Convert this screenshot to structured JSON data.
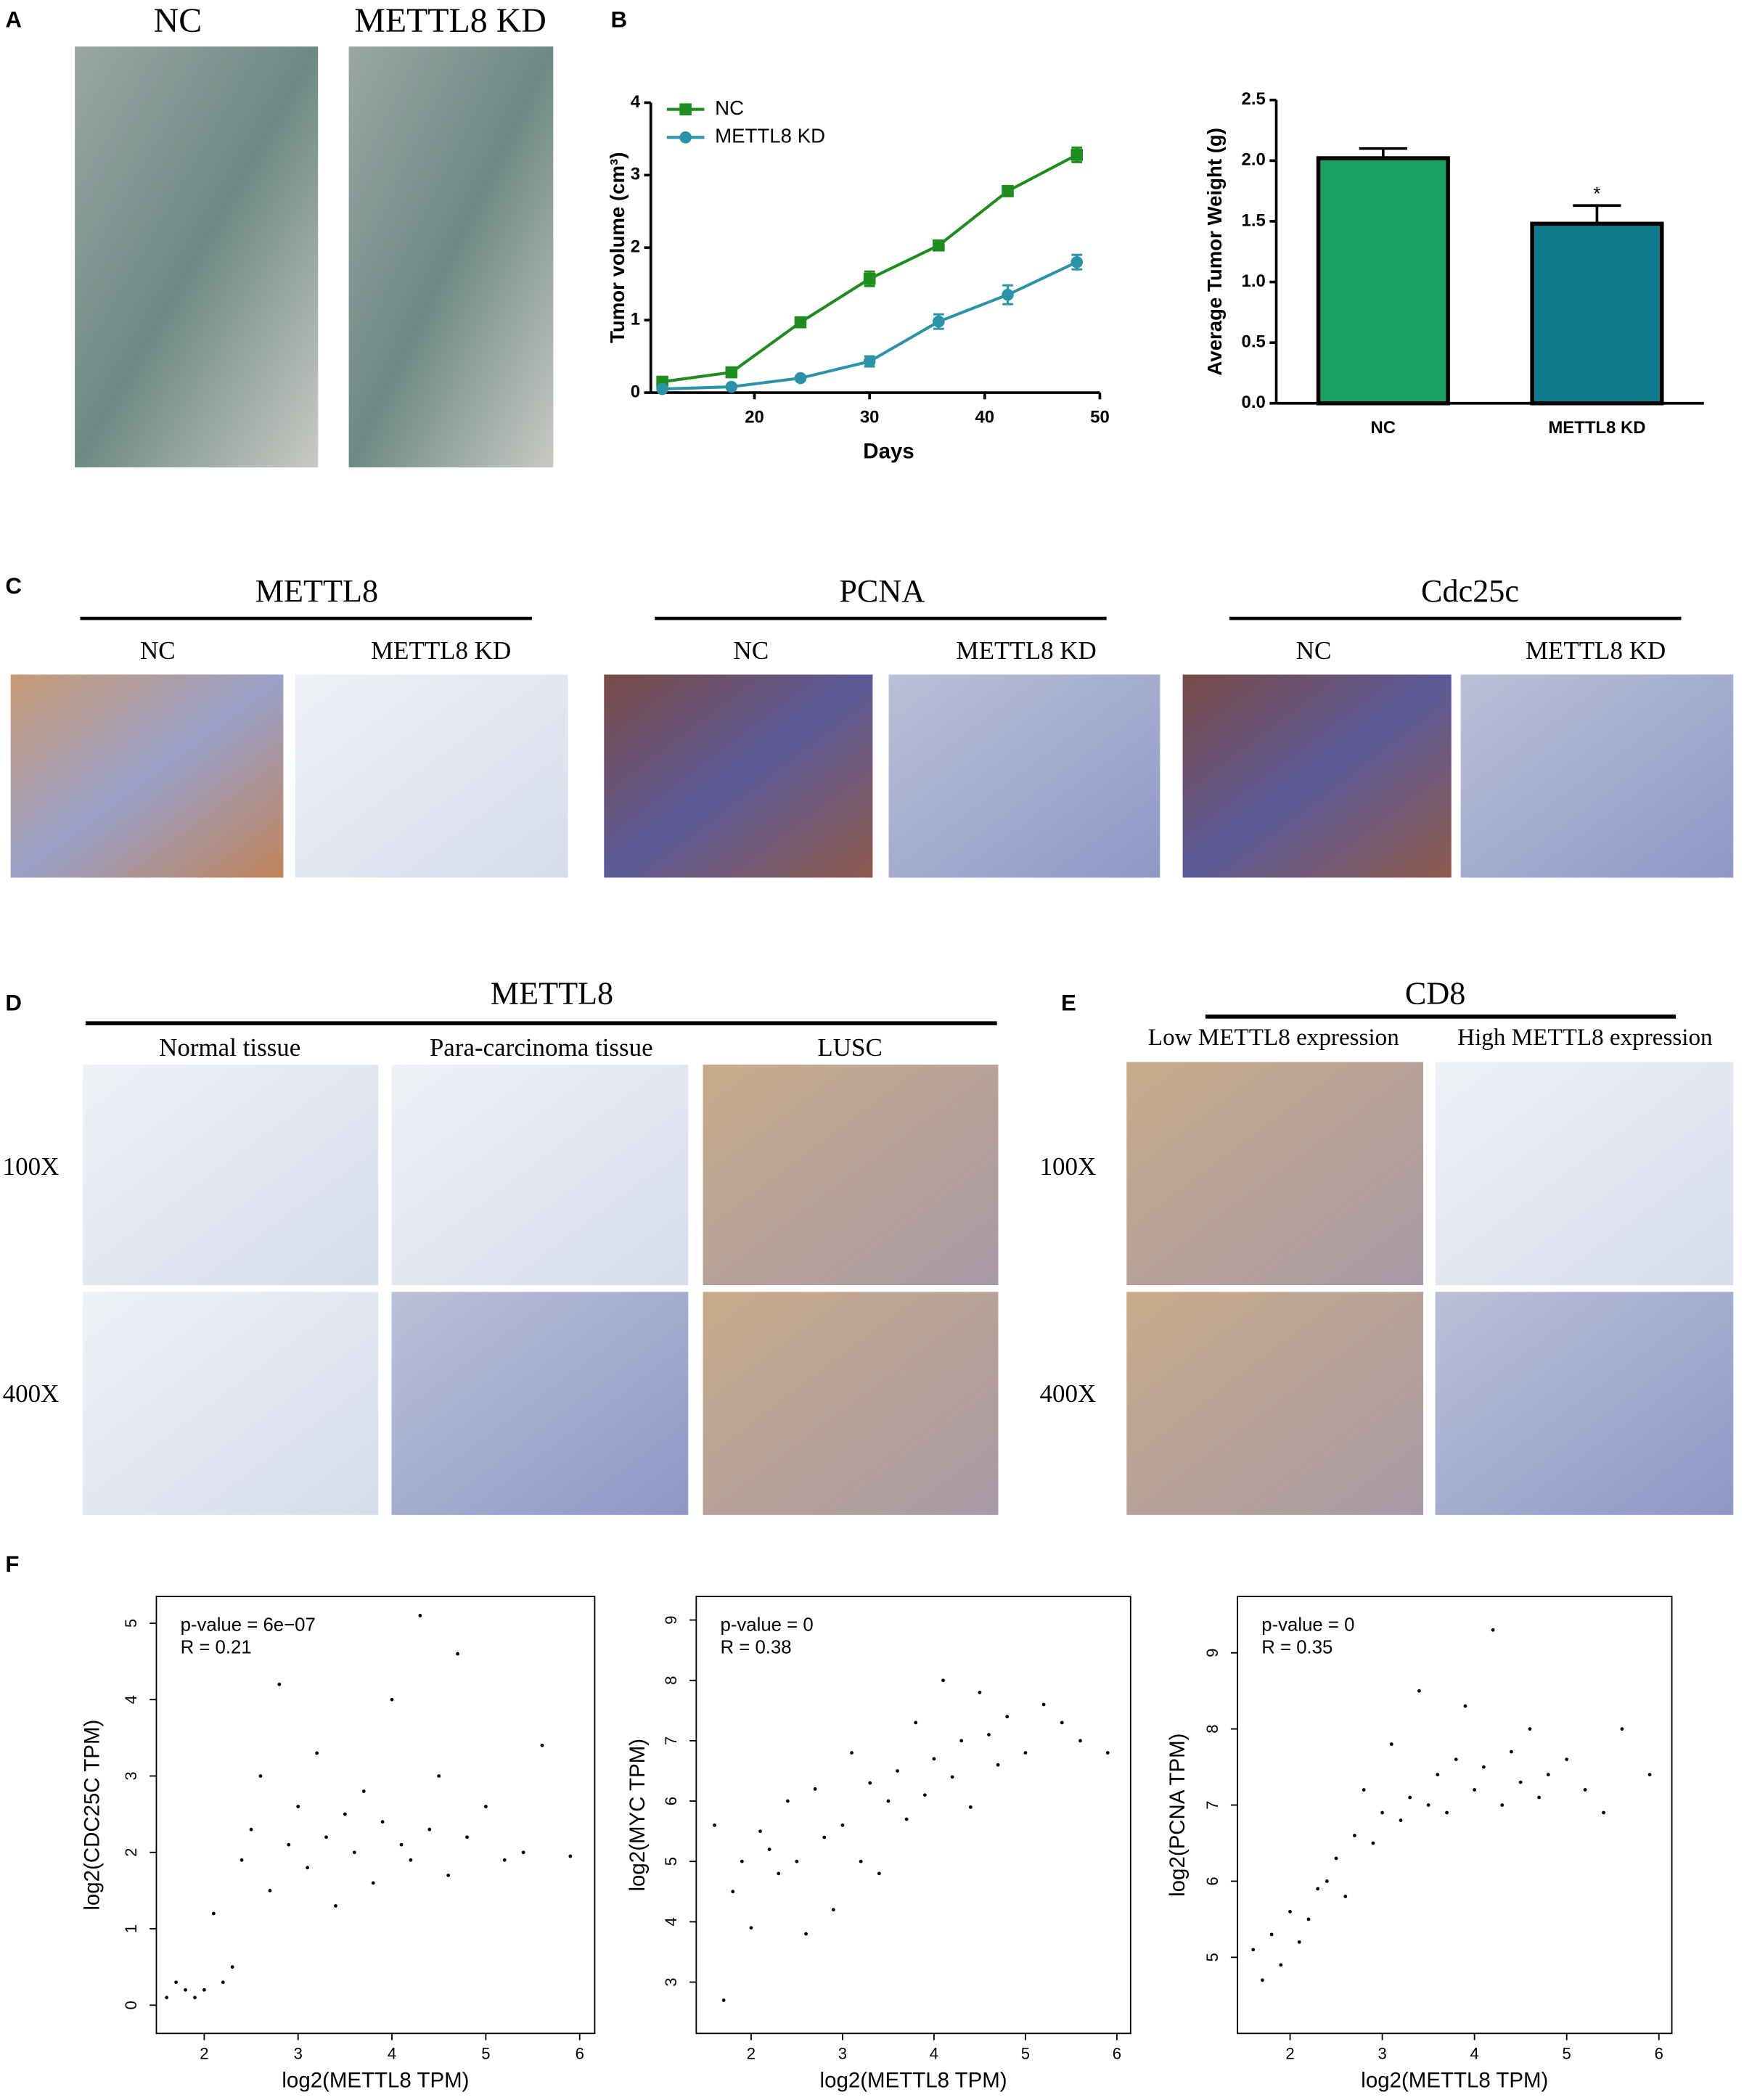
{
  "panel_labels": [
    "A",
    "B",
    "C",
    "D",
    "E",
    "F"
  ],
  "panel_a": {
    "labels": [
      "NC",
      "METTL8 KD"
    ]
  },
  "panel_c": {
    "groups": [
      {
        "title": "METTL8",
        "labels": [
          "NC",
          "METTL8 KD"
        ]
      },
      {
        "title": "PCNA",
        "labels": [
          "NC",
          "METTL8 KD"
        ]
      },
      {
        "title": "Cdc25c",
        "labels": [
          "NC",
          "METTL8 KD"
        ]
      }
    ]
  },
  "panel_d": {
    "title": "METTL8",
    "columns": [
      "Normal tissue",
      "Para-carcinoma tissue",
      "LUSC"
    ],
    "rows": [
      "100X",
      "400X"
    ]
  },
  "panel_e": {
    "title": "CD8",
    "columns": [
      "Low METTL8 expression",
      "High METTL8 expression"
    ],
    "rows": [
      "100X",
      "400X"
    ]
  },
  "chart_data": [
    {
      "type": "line",
      "xlabel": "Days",
      "ylabel": "Tumor volume (cm³)",
      "x": [
        12,
        18,
        24,
        30,
        36,
        42,
        48
      ],
      "series": [
        {
          "name": "NC",
          "color": "#1e8c1e",
          "marker": "square",
          "values": [
            0.15,
            0.28,
            0.97,
            1.57,
            2.03,
            2.78,
            3.28
          ],
          "errors": [
            0.05,
            0.05,
            0.05,
            0.1,
            0.06,
            0.07,
            0.1
          ]
        },
        {
          "name": "METTL8 KD",
          "color": "#2a93a8",
          "marker": "circle",
          "values": [
            0.05,
            0.08,
            0.2,
            0.43,
            0.98,
            1.35,
            1.8
          ],
          "errors": [
            0.02,
            0.02,
            0.03,
            0.07,
            0.1,
            0.13,
            0.1
          ]
        }
      ],
      "xlim": [
        11,
        50
      ],
      "xticks": [
        20,
        30,
        40,
        50
      ],
      "ylim": [
        0,
        4
      ],
      "yticks": [
        0,
        1,
        2,
        3,
        4
      ],
      "legend": "upper-left"
    },
    {
      "type": "bar",
      "ylabel": "Average Tumor Weight (g)",
      "categories": [
        "NC",
        "METTL8 KD"
      ],
      "values": [
        2.02,
        1.48
      ],
      "errors": [
        0.08,
        0.15
      ],
      "colors": [
        "#1aa060",
        "#0e7b8c"
      ],
      "annotations": [
        "",
        "*"
      ],
      "ylim": [
        0,
        2.5
      ],
      "yticks": [
        {
          "value": 0,
          "label": "0.0"
        },
        0.5,
        {
          "value": 1,
          "label": "1.0"
        },
        1.5,
        {
          "value": 2,
          "label": "2.0"
        },
        2.5
      ]
    },
    {
      "type": "scatter",
      "xlabel": "log2(METTL8 TPM)",
      "ylabel": "log2(CDC25C TPM)",
      "annotations": [
        "p-value = 6e−07",
        "R = 0.21"
      ],
      "color": "#000000",
      "x": [
        1.6,
        1.7,
        1.8,
        1.9,
        2.0,
        2.1,
        2.2,
        2.3,
        2.4,
        2.5,
        2.6,
        2.7,
        2.8,
        2.9,
        3.0,
        3.1,
        3.2,
        3.3,
        3.4,
        3.5,
        3.6,
        3.7,
        3.8,
        3.9,
        4.0,
        4.1,
        4.2,
        4.3,
        4.4,
        4.5,
        4.6,
        4.7,
        4.8,
        5.0,
        5.2,
        5.4,
        5.6,
        5.9
      ],
      "values": [
        0.1,
        0.3,
        0.2,
        0.1,
        0.2,
        1.2,
        0.3,
        0.5,
        1.9,
        2.3,
        3.0,
        1.5,
        4.2,
        2.1,
        2.6,
        1.8,
        3.3,
        2.2,
        1.3,
        2.5,
        2.0,
        2.8,
        1.6,
        2.4,
        4.0,
        2.1,
        1.9,
        5.1,
        2.3,
        3.0,
        1.7,
        4.6,
        2.2,
        2.6,
        1.9,
        2.0,
        3.4,
        1.95
      ],
      "xlim": [
        1.49,
        6.16
      ],
      "xticks": [
        2,
        3,
        4,
        5,
        6
      ],
      "ylim": [
        -0.37,
        5.35
      ],
      "yticks": [
        0,
        1,
        2,
        3,
        4,
        5
      ]
    },
    {
      "type": "scatter",
      "xlabel": "log2(METTL8 TPM)",
      "ylabel": "log2(MYC TPM)",
      "annotations": [
        "p-value = 0",
        "R = 0.38"
      ],
      "color": "#000000",
      "x": [
        1.6,
        1.7,
        1.8,
        1.9,
        2.0,
        2.1,
        2.2,
        2.3,
        2.4,
        2.5,
        2.6,
        2.7,
        2.8,
        2.9,
        3.0,
        3.1,
        3.2,
        3.3,
        3.4,
        3.5,
        3.6,
        3.7,
        3.8,
        3.9,
        4.0,
        4.1,
        4.2,
        4.3,
        4.4,
        4.5,
        4.6,
        4.7,
        4.8,
        5.0,
        5.2,
        5.4,
        5.6,
        5.9
      ],
      "values": [
        5.6,
        2.7,
        4.5,
        5.0,
        3.9,
        5.5,
        5.2,
        4.8,
        6.0,
        5.0,
        3.8,
        6.2,
        5.4,
        4.2,
        5.6,
        6.8,
        5.0,
        6.3,
        4.8,
        6.0,
        6.5,
        5.7,
        7.3,
        6.1,
        6.7,
        8.0,
        6.4,
        7.0,
        5.9,
        7.8,
        7.1,
        6.6,
        7.4,
        6.8,
        7.6,
        7.3,
        7.0,
        6.8
      ],
      "xlim": [
        1.4,
        6.15
      ],
      "xticks": [
        2,
        3,
        4,
        5,
        6
      ],
      "ylim": [
        2.15,
        9.39
      ],
      "yticks": [
        3,
        4,
        5,
        6,
        7,
        8,
        9
      ]
    },
    {
      "type": "scatter",
      "xlabel": "log2(METTL8 TPM)",
      "ylabel": "log2(PCNA TPM)",
      "annotations": [
        "p-value = 0",
        "R = 0.35"
      ],
      "color": "#000000",
      "x": [
        1.6,
        1.7,
        1.8,
        1.9,
        2.0,
        2.1,
        2.2,
        2.3,
        2.4,
        2.5,
        2.6,
        2.7,
        2.8,
        2.9,
        3.0,
        3.1,
        3.2,
        3.3,
        3.4,
        3.5,
        3.6,
        3.7,
        3.8,
        3.9,
        4.0,
        4.1,
        4.2,
        4.3,
        4.4,
        4.5,
        4.6,
        4.7,
        4.8,
        5.0,
        5.2,
        5.4,
        5.6,
        5.9
      ],
      "values": [
        5.1,
        4.7,
        5.3,
        4.9,
        5.6,
        5.2,
        5.5,
        5.9,
        6.0,
        6.3,
        5.8,
        6.6,
        7.2,
        6.5,
        6.9,
        7.8,
        6.8,
        7.1,
        8.5,
        7.0,
        7.4,
        6.9,
        7.6,
        8.3,
        7.2,
        7.5,
        9.3,
        7.0,
        7.7,
        7.3,
        8.0,
        7.1,
        7.4,
        7.6,
        7.2,
        6.9,
        8.0,
        7.4
      ],
      "xlim": [
        1.43,
        6.14
      ],
      "xticks": [
        2,
        3,
        4,
        5,
        6
      ],
      "ylim": [
        4.0,
        9.74
      ],
      "yticks": [
        5,
        6,
        7,
        8,
        9
      ]
    }
  ]
}
